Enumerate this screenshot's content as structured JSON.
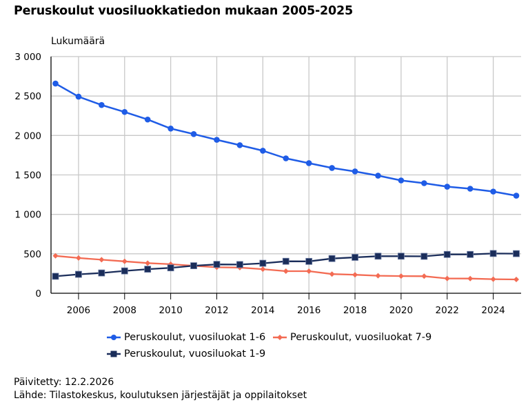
{
  "chart_data": {
    "type": "line",
    "title": "Peruskoulut vuosiluokkatiedon mukaan 2005-2025",
    "ylabel": "Lukumäärä",
    "xlabel": "",
    "x": [
      2005,
      2006,
      2007,
      2008,
      2009,
      2010,
      2011,
      2012,
      2013,
      2014,
      2015,
      2016,
      2017,
      2018,
      2019,
      2020,
      2021,
      2022,
      2023,
      2024,
      2025
    ],
    "xlim": [
      2004.8,
      2025.2
    ],
    "ylim": [
      0,
      3000
    ],
    "x_ticks": [
      2006,
      2008,
      2010,
      2012,
      2014,
      2016,
      2018,
      2020,
      2022,
      2024
    ],
    "x_tick_labels": [
      "2006",
      "2008",
      "2010",
      "2012",
      "2014",
      "2016",
      "2018",
      "2020",
      "2022",
      "2024"
    ],
    "y_ticks": [
      0,
      500,
      1000,
      1500,
      2000,
      2500,
      3000
    ],
    "y_tick_labels": [
      "0",
      "500",
      "1 000",
      "1 500",
      "2 000",
      "2 500",
      "3 000"
    ],
    "grid": true,
    "legend_position": "bottom",
    "series": [
      {
        "name": "Peruskoulut, vuosiluokat 1-6",
        "color": "#1f5ce6",
        "marker": "circle",
        "values": [
          2658,
          2492,
          2386,
          2298,
          2202,
          2088,
          2018,
          1945,
          1877,
          1807,
          1710,
          1649,
          1588,
          1544,
          1491,
          1430,
          1395,
          1351,
          1325,
          1289,
          1237
        ]
      },
      {
        "name": "Peruskoulut, vuosiluokat 7-9",
        "color": "#f36b53",
        "marker": "diamond",
        "values": [
          474,
          447,
          425,
          404,
          382,
          368,
          348,
          329,
          325,
          305,
          280,
          280,
          243,
          234,
          222,
          218,
          216,
          187,
          186,
          178,
          175
        ]
      },
      {
        "name": "Peruskoulut, vuosiluokat 1-9",
        "color": "#1a2d5a",
        "marker": "square",
        "values": [
          215,
          240,
          257,
          283,
          305,
          322,
          349,
          366,
          364,
          380,
          405,
          404,
          440,
          455,
          470,
          470,
          468,
          492,
          492,
          504,
          502
        ]
      }
    ]
  },
  "footer": {
    "updated": "Päivitetty: 12.2.2026",
    "source": "Lähde: Tilastokeskus, koulutuksen järjestäjät ja oppilaitokset"
  }
}
